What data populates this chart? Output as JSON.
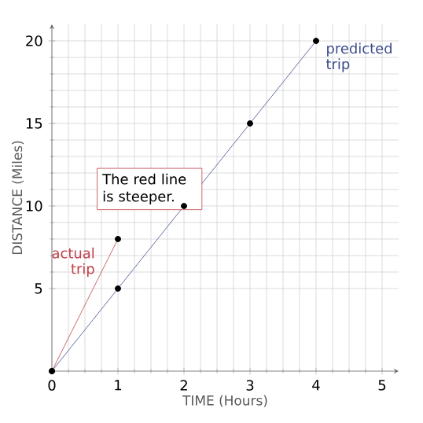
{
  "chart_data": {
    "type": "line",
    "xlabel": "TIME (Hours)",
    "ylabel": "DISTANCE (Miles)",
    "xlim": [
      0,
      5.25
    ],
    "ylim": [
      0,
      21
    ],
    "xticks": [
      0,
      1,
      2,
      3,
      4,
      5
    ],
    "yticks": [
      5,
      10,
      15,
      20
    ],
    "grid": true,
    "legend": false,
    "marker": "circle",
    "series": [
      {
        "name": "actual trip",
        "color": "#c0404a",
        "x": [
          0,
          1
        ],
        "values": [
          0,
          8
        ]
      },
      {
        "name": "predicted trip",
        "color": "#3c4a8c",
        "x": [
          0,
          1,
          2,
          3,
          4
        ],
        "values": [
          0,
          5,
          10,
          15,
          20
        ]
      }
    ],
    "annotations": [
      "The red line is steeper."
    ]
  }
}
